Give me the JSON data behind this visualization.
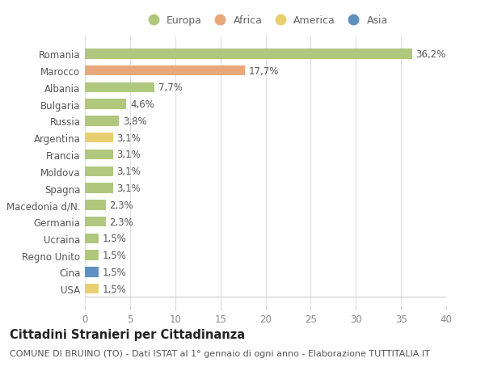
{
  "countries": [
    "Romania",
    "Marocco",
    "Albania",
    "Bulgaria",
    "Russia",
    "Argentina",
    "Francia",
    "Moldova",
    "Spagna",
    "Macedonia d/N.",
    "Germania",
    "Ucraina",
    "Regno Unito",
    "Cina",
    "USA"
  ],
  "values": [
    36.2,
    17.7,
    7.7,
    4.6,
    3.8,
    3.1,
    3.1,
    3.1,
    3.1,
    2.3,
    2.3,
    1.5,
    1.5,
    1.5,
    1.5
  ],
  "labels": [
    "36,2%",
    "17,7%",
    "7,7%",
    "4,6%",
    "3,8%",
    "3,1%",
    "3,1%",
    "3,1%",
    "3,1%",
    "2,3%",
    "2,3%",
    "1,5%",
    "1,5%",
    "1,5%",
    "1,5%"
  ],
  "categories": [
    "Europa",
    "Africa",
    "Europa",
    "Europa",
    "Europa",
    "America",
    "Europa",
    "Europa",
    "Europa",
    "Europa",
    "Europa",
    "Europa",
    "Europa",
    "Asia",
    "America"
  ],
  "colors": {
    "Europa": "#afc87e",
    "Africa": "#e8a87c",
    "America": "#e8d070",
    "Asia": "#6090c0"
  },
  "title": "Cittadini Stranieri per Cittadinanza",
  "subtitle": "COMUNE DI BRUINO (TO) - Dati ISTAT al 1° gennaio di ogni anno - Elaborazione TUTTITALIA.IT",
  "xlim": [
    0,
    40
  ],
  "xticks": [
    0,
    5,
    10,
    15,
    20,
    25,
    30,
    35,
    40
  ],
  "background_color": "#ffffff",
  "grid_color": "#e0e0e0",
  "bar_height": 0.6,
  "label_fontsize": 8.5,
  "tick_fontsize": 8.5,
  "title_fontsize": 10.5,
  "subtitle_fontsize": 8,
  "legend_order": [
    "Europa",
    "Africa",
    "America",
    "Asia"
  ]
}
